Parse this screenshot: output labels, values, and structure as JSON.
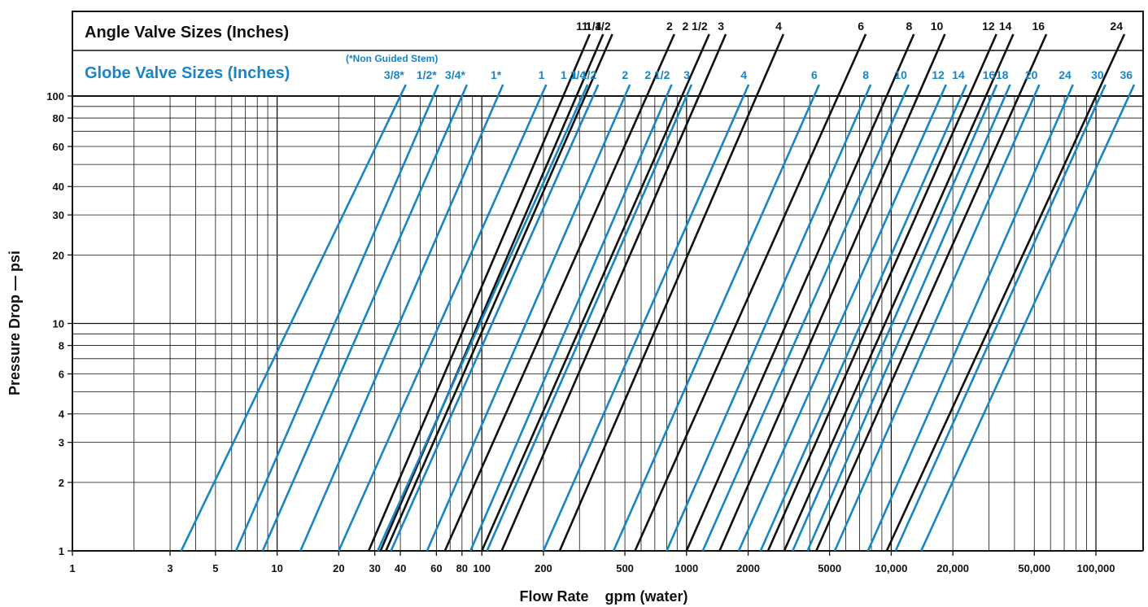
{
  "chart_data": {
    "type": "line",
    "xscale": "log",
    "yscale": "log",
    "xlim": [
      1,
      170000
    ],
    "ylim": [
      1,
      100
    ],
    "xlabel": "Flow Rate    gpm (water)",
    "ylabel": "Pressure Drop — psi",
    "grid": true,
    "angle_header": "Angle Valve Sizes (Inches)",
    "globe_header": "Globe Valve Sizes (Inches)",
    "globe_note": "(*Non Guided Stem)",
    "colors": {
      "angle": "#111111",
      "globe": "#1a85c4"
    },
    "x_ticks": [
      {
        "v": 1,
        "label": "1"
      },
      {
        "v": 3,
        "label": "3"
      },
      {
        "v": 5,
        "label": "5"
      },
      {
        "v": 10,
        "label": "10"
      },
      {
        "v": 20,
        "label": "20"
      },
      {
        "v": 30,
        "label": "30"
      },
      {
        "v": 40,
        "label": "40"
      },
      {
        "v": 60,
        "label": "60"
      },
      {
        "v": 80,
        "label": "80"
      },
      {
        "v": 100,
        "label": "100"
      },
      {
        "v": 200,
        "label": "200"
      },
      {
        "v": 500,
        "label": "500"
      },
      {
        "v": 1000,
        "label": "1000"
      },
      {
        "v": 2000,
        "label": "2000"
      },
      {
        "v": 5000,
        "label": "5000"
      },
      {
        "v": 10000,
        "label": "10,000"
      },
      {
        "v": 20000,
        "label": "20,000"
      },
      {
        "v": 50000,
        "label": "50,000"
      },
      {
        "v": 100000,
        "label": "100,000"
      }
    ],
    "y_ticks": [
      {
        "v": 1,
        "label": "1"
      },
      {
        "v": 2,
        "label": "2"
      },
      {
        "v": 3,
        "label": "3"
      },
      {
        "v": 4,
        "label": "4"
      },
      {
        "v": 6,
        "label": "6"
      },
      {
        "v": 8,
        "label": "8"
      },
      {
        "v": 10,
        "label": "10"
      },
      {
        "v": 20,
        "label": "20"
      },
      {
        "v": 30,
        "label": "30"
      },
      {
        "v": 40,
        "label": "40"
      },
      {
        "v": 60,
        "label": "60"
      },
      {
        "v": 80,
        "label": "80"
      },
      {
        "v": 100,
        "label": "100"
      }
    ],
    "series": [
      {
        "name": "1",
        "group": "angle",
        "x": [
          28,
          250
        ],
        "y": [
          1,
          100
        ]
      },
      {
        "name": "1 1/4",
        "group": "angle",
        "x": [
          32,
          290
        ],
        "y": [
          1,
          100
        ]
      },
      {
        "name": "1 1/2",
        "group": "angle",
        "x": [
          34,
          320
        ],
        "y": [
          1,
          100
        ]
      },
      {
        "name": "2",
        "group": "angle",
        "x": [
          66,
          640
        ],
        "y": [
          1,
          100
        ]
      },
      {
        "name": "2 1/2",
        "group": "angle",
        "x": [
          100,
          950
        ],
        "y": [
          1,
          100
        ]
      },
      {
        "name": "3",
        "group": "angle",
        "x": [
          125,
          1150
        ],
        "y": [
          1,
          100
        ]
      },
      {
        "name": "4",
        "group": "angle",
        "x": [
          240,
          2200
        ],
        "y": [
          1,
          100
        ]
      },
      {
        "name": "6",
        "group": "angle",
        "x": [
          560,
          5500
        ],
        "y": [
          1,
          100
        ]
      },
      {
        "name": "8",
        "group": "angle",
        "x": [
          1000,
          9500
        ],
        "y": [
          1,
          100
        ]
      },
      {
        "name": "10",
        "group": "angle",
        "x": [
          1450,
          13500
        ],
        "y": [
          1,
          100
        ]
      },
      {
        "name": "12",
        "group": "angle",
        "x": [
          2500,
          24000
        ],
        "y": [
          1,
          100
        ]
      },
      {
        "name": "14",
        "group": "angle",
        "x": [
          3000,
          29000
        ],
        "y": [
          1,
          100
        ]
      },
      {
        "name": "16",
        "group": "angle",
        "x": [
          4300,
          42000
        ],
        "y": [
          1,
          100
        ]
      },
      {
        "name": "24",
        "group": "angle",
        "x": [
          9500,
          100000
        ],
        "y": [
          1,
          100
        ]
      },
      {
        "name": "3/8*",
        "group": "globe",
        "x": [
          3.4,
          40
        ],
        "y": [
          1,
          100
        ]
      },
      {
        "name": "1/2*",
        "group": "globe",
        "x": [
          6.3,
          58
        ],
        "y": [
          1,
          100
        ]
      },
      {
        "name": "3/4*",
        "group": "globe",
        "x": [
          8.5,
          80
        ],
        "y": [
          1,
          100
        ]
      },
      {
        "name": "1*",
        "group": "globe",
        "x": [
          13,
          120
        ],
        "y": [
          1,
          100
        ]
      },
      {
        "name": "1",
        "group": "globe",
        "x": [
          20,
          195
        ],
        "y": [
          1,
          100
        ]
      },
      {
        "name": "1 1/4",
        "group": "globe",
        "x": [
          31,
          310
        ],
        "y": [
          1,
          100
        ]
      },
      {
        "name": "1 1/2",
        "group": "globe",
        "x": [
          36,
          350
        ],
        "y": [
          1,
          100
        ]
      },
      {
        "name": "2",
        "group": "globe",
        "x": [
          54,
          500
        ],
        "y": [
          1,
          100
        ]
      },
      {
        "name": "2 1/2",
        "group": "globe",
        "x": [
          88,
          800
        ],
        "y": [
          1,
          100
        ]
      },
      {
        "name": "3",
        "group": "globe",
        "x": [
          106,
          1000
        ],
        "y": [
          1,
          100
        ]
      },
      {
        "name": "4",
        "group": "globe",
        "x": [
          200,
          1900
        ],
        "y": [
          1,
          100
        ]
      },
      {
        "name": "6",
        "group": "globe",
        "x": [
          440,
          4200
        ],
        "y": [
          1,
          100
        ]
      },
      {
        "name": "8",
        "group": "globe",
        "x": [
          800,
          7500
        ],
        "y": [
          1,
          100
        ]
      },
      {
        "name": "10",
        "group": "globe",
        "x": [
          1200,
          11500
        ],
        "y": [
          1,
          100
        ]
      },
      {
        "name": "12",
        "group": "globe",
        "x": [
          1800,
          17500
        ],
        "y": [
          1,
          100
        ]
      },
      {
        "name": "14",
        "group": "globe",
        "x": [
          2300,
          22000
        ],
        "y": [
          1,
          100
        ]
      },
      {
        "name": "16",
        "group": "globe",
        "x": [
          3300,
          31000
        ],
        "y": [
          1,
          100
        ]
      },
      {
        "name": "18",
        "group": "globe",
        "x": [
          3900,
          36000
        ],
        "y": [
          1,
          100
        ]
      },
      {
        "name": "20",
        "group": "globe",
        "x": [
          5300,
          50000
        ],
        "y": [
          1,
          100
        ]
      },
      {
        "name": "24",
        "group": "globe",
        "x": [
          7700,
          73000
        ],
        "y": [
          1,
          100
        ]
      },
      {
        "name": "30",
        "group": "globe",
        "x": [
          10500,
          105000
        ],
        "y": [
          1,
          100
        ]
      },
      {
        "name": "36",
        "group": "globe",
        "x": [
          14000,
          145000
        ],
        "y": [
          1,
          100
        ]
      }
    ]
  }
}
